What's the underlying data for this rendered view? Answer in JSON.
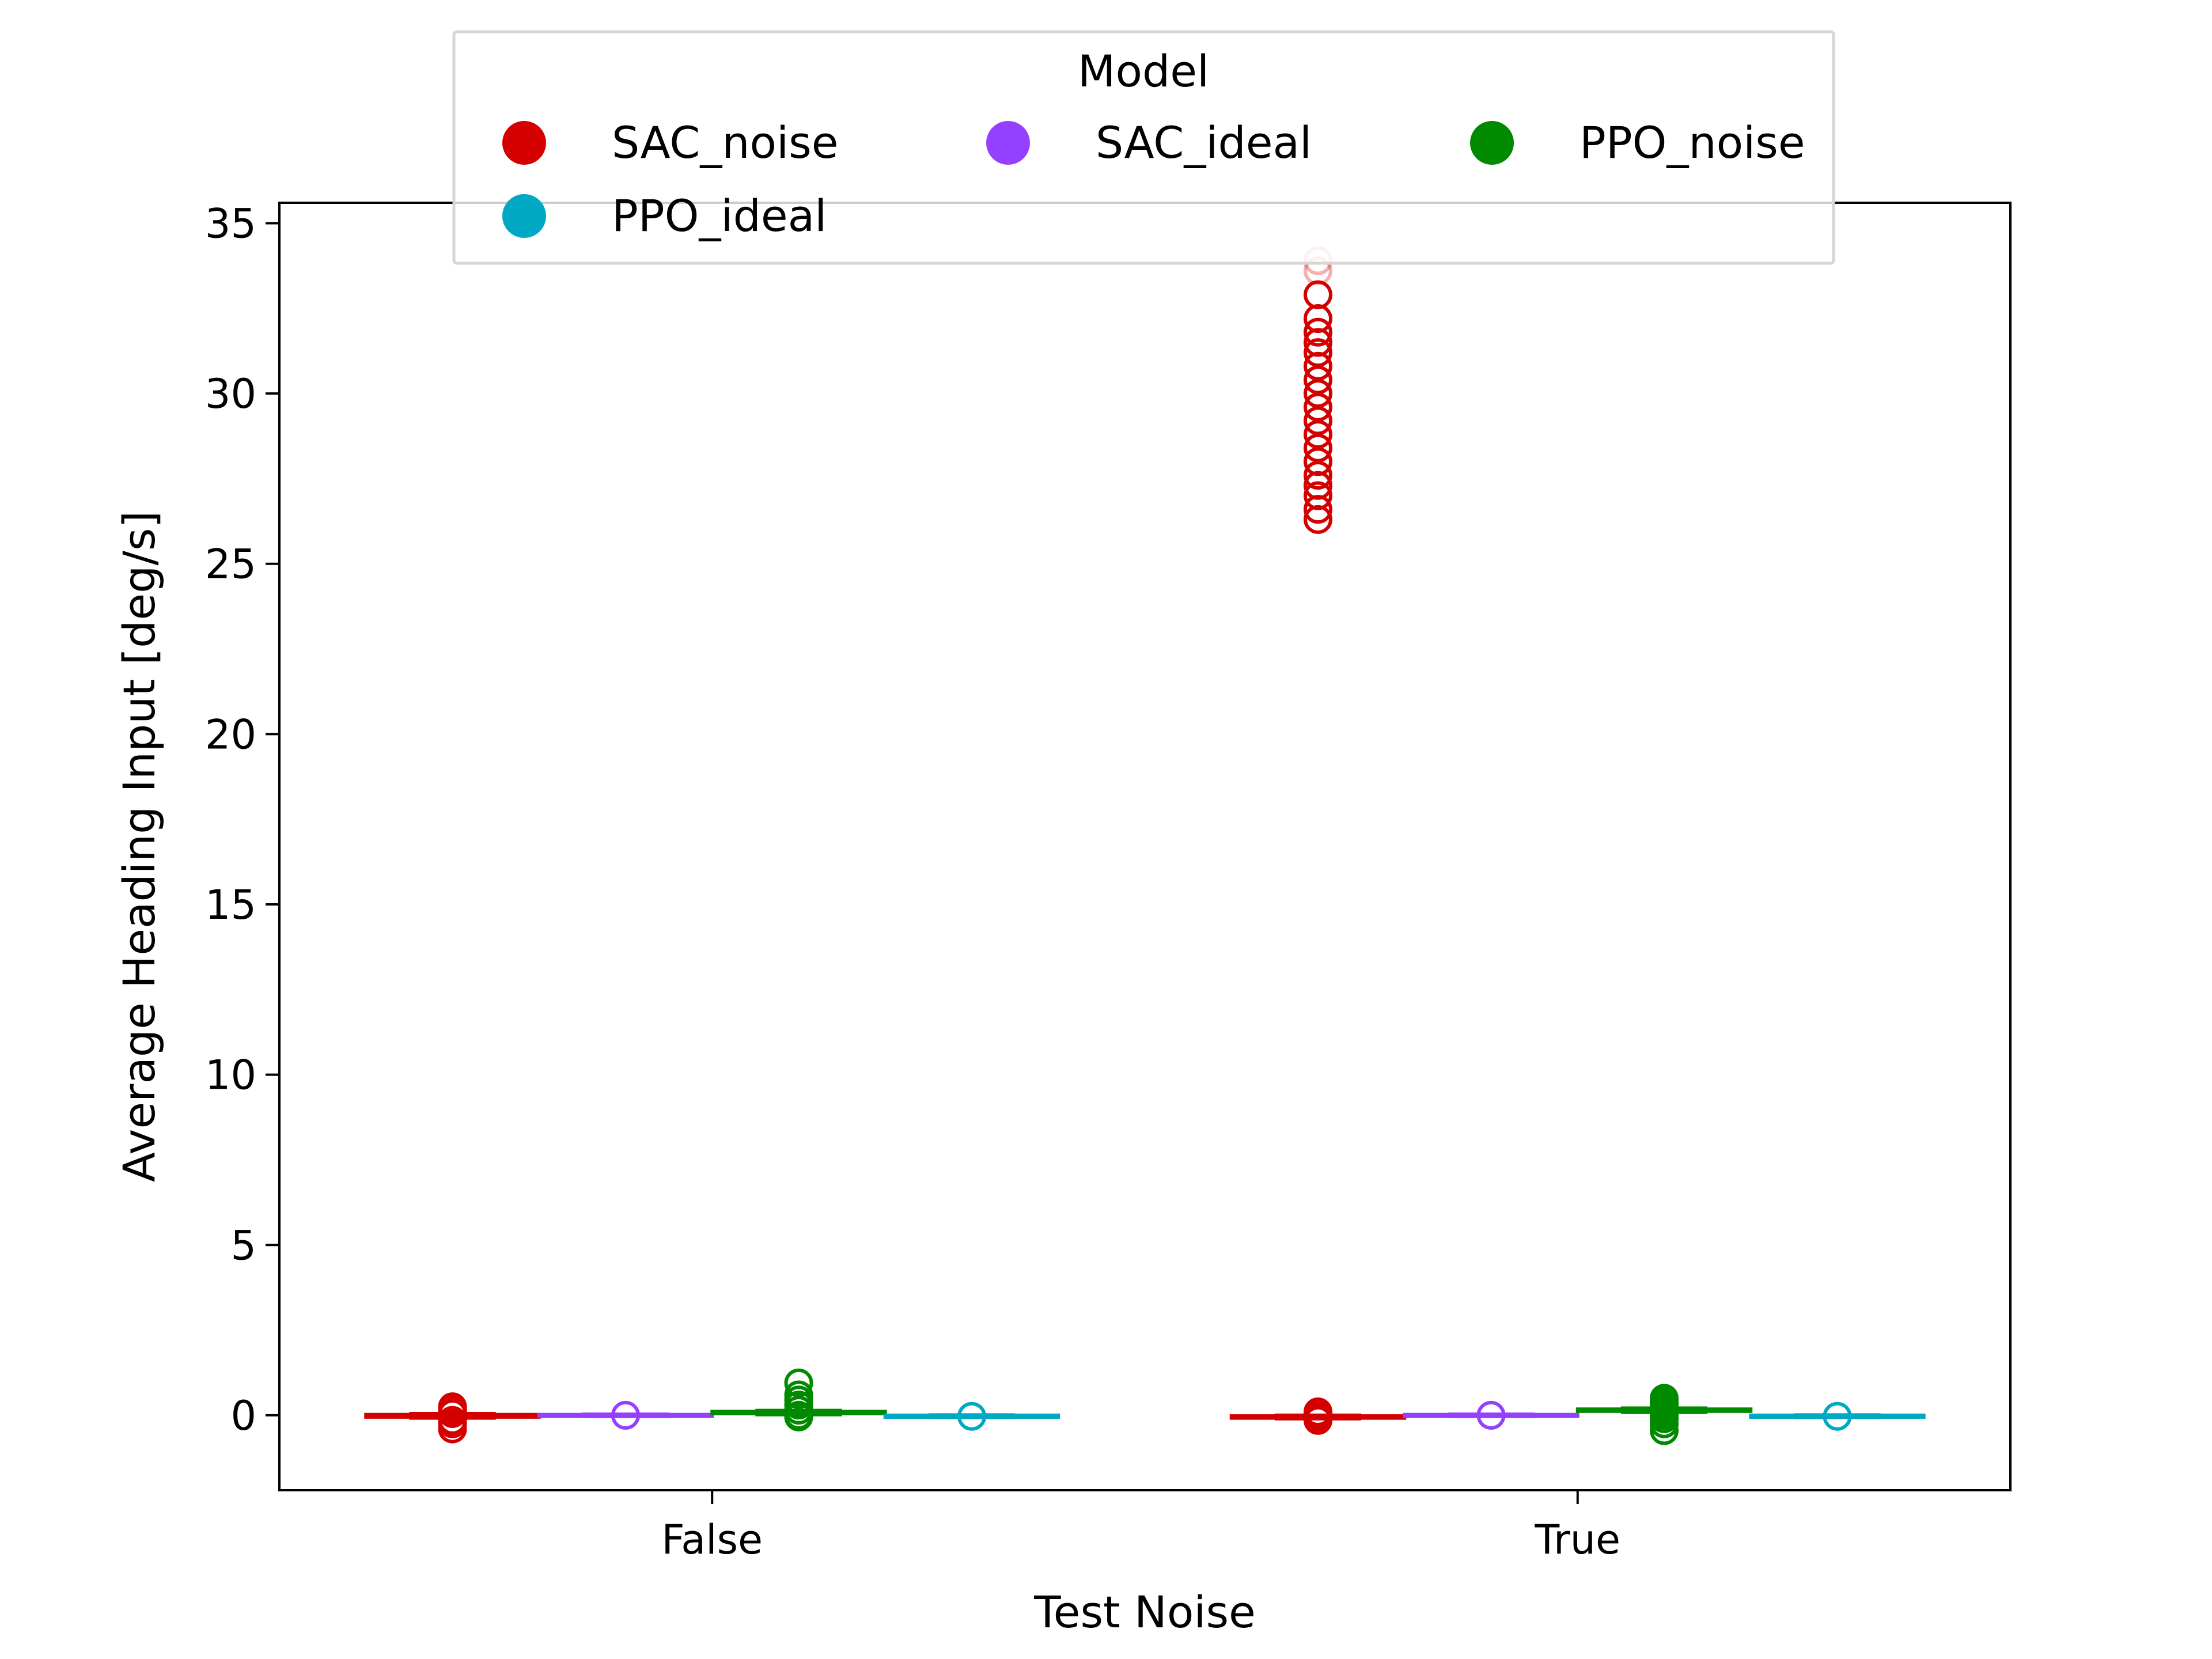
{
  "chart_data": {
    "type": "box",
    "xlabel": "Test Noise",
    "ylabel": "Average Heading Input [deg/s]",
    "categories": [
      "False",
      "True"
    ],
    "ylim": [
      -2.2,
      35.6
    ],
    "yticks": [
      0,
      5,
      10,
      15,
      20,
      25,
      30,
      35
    ],
    "grid": false,
    "legend": {
      "title": "Model",
      "placement": "top-center",
      "columns": 3
    },
    "series": [
      {
        "name": "SAC_noise",
        "color": "#d40000",
        "boxes": [
          {
            "median": -0.02,
            "q1": -0.05,
            "q3": 0.02,
            "whisker_low": -0.08,
            "whisker_high": 0.05,
            "outliers": [
              0.25,
              0.15,
              0.05,
              -0.15,
              -0.25,
              -0.4
            ]
          },
          {
            "median": -0.05,
            "q1": -0.08,
            "q3": -0.02,
            "whisker_low": -0.1,
            "whisker_high": 0.0,
            "outliers": [
              0.1,
              0.05,
              -0.05,
              -0.15,
              26.3,
              26.6,
              27.0,
              27.3,
              27.6,
              28.0,
              28.4,
              28.8,
              29.2,
              29.6,
              30.0,
              30.4,
              30.8,
              31.2,
              31.5,
              31.8,
              32.2,
              32.9,
              33.6,
              33.9
            ]
          }
        ]
      },
      {
        "name": "SAC_ideal",
        "color": "#9640ff",
        "boxes": [
          {
            "median": 0.0,
            "q1": -0.02,
            "q3": 0.02,
            "whisker_low": -0.03,
            "whisker_high": 0.03,
            "outliers": [
              0.0
            ]
          },
          {
            "median": 0.0,
            "q1": -0.02,
            "q3": 0.02,
            "whisker_low": -0.03,
            "whisker_high": 0.03,
            "outliers": [
              0.0
            ]
          }
        ]
      },
      {
        "name": "PPO_noise",
        "color": "#008a00",
        "boxes": [
          {
            "median": 0.08,
            "q1": 0.05,
            "q3": 0.11,
            "whisker_low": 0.02,
            "whisker_high": 0.14,
            "outliers": [
              0.95,
              0.6,
              0.45,
              0.3,
              0.15,
              0.0,
              -0.05
            ]
          },
          {
            "median": 0.15,
            "q1": 0.12,
            "q3": 0.18,
            "whisker_low": 0.09,
            "whisker_high": 0.21,
            "outliers": [
              0.5,
              0.4,
              0.3,
              0.2,
              0.1,
              0.0,
              -0.1,
              -0.25,
              -0.45
            ]
          }
        ]
      },
      {
        "name": "PPO_ideal",
        "color": "#00a8c4",
        "boxes": [
          {
            "median": -0.03,
            "q1": -0.05,
            "q3": 0.0,
            "whisker_low": -0.06,
            "whisker_high": 0.01,
            "outliers": [
              -0.03
            ]
          },
          {
            "median": -0.03,
            "q1": -0.05,
            "q3": 0.0,
            "whisker_low": -0.06,
            "whisker_high": 0.01,
            "outliers": [
              -0.03
            ]
          }
        ]
      }
    ]
  }
}
